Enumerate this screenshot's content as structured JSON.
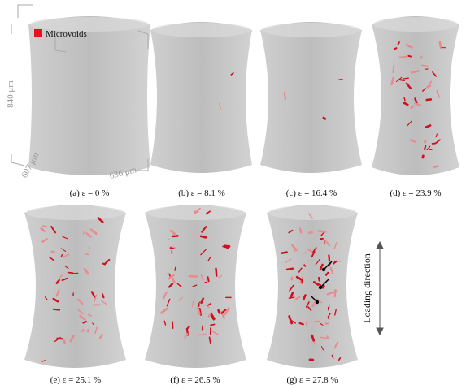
{
  "legend": {
    "label": "Microvoids"
  },
  "dimensions": {
    "height": "840 μm",
    "depth": "607 μm",
    "width": "636 μm"
  },
  "panels": [
    {
      "caption": "(a) ε = 0 %"
    },
    {
      "caption": "(b) ε = 8.1 %"
    },
    {
      "caption": "(c) ε = 16.4 %"
    },
    {
      "caption": "(d) ε = 23.9 %"
    },
    {
      "caption": "(e) ε = 25.1 %"
    },
    {
      "caption": "(f) ε = 26.5 %"
    },
    {
      "caption": "(g) ε = 27.8 %"
    }
  ],
  "loading_direction": "Loading direction"
}
